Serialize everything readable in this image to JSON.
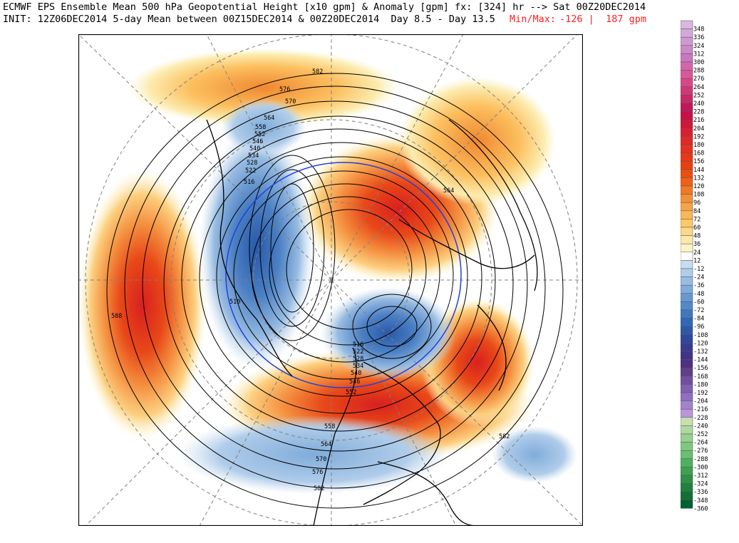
{
  "header": {
    "line1_left": "ECMWF EPS Ensemble Mean 500 hPa Geopotential Height [x10 gpm] & Anomaly [gpm] fx: [324] hr --> Sat 00Z20DEC2014",
    "line2_left": "INIT: 12Z06DEC2014 5-day Mean between 00Z15DEC2014 & 00Z20DEC2014  Day 8.5 - Day 13.5",
    "line2_overlap": "Min/Max:",
    "minmax_min": "-126",
    "minmax_sep": "|",
    "minmax_max": "187 gpm"
  },
  "map": {
    "projection": "north-polar-stereographic",
    "contour_labels": [
      "582",
      "576",
      "570",
      "564",
      "558",
      "552",
      "546",
      "540",
      "534",
      "528",
      "522",
      "516",
      "510",
      "588",
      "564",
      "516",
      "522",
      "528",
      "534",
      "540",
      "546",
      "552",
      "558",
      "564",
      "570",
      "576",
      "582",
      "582"
    ],
    "colors": {
      "positive_anomaly": "#f08030",
      "negative_anomaly": "#3070c0",
      "contour": "#000000",
      "graticule": "#808080"
    }
  },
  "colorbar": {
    "levels": [
      "348",
      "336",
      "324",
      "312",
      "300",
      "288",
      "276",
      "264",
      "252",
      "240",
      "228",
      "216",
      "204",
      "192",
      "180",
      "168",
      "156",
      "144",
      "132",
      "120",
      "108",
      "96",
      "84",
      "72",
      "60",
      "48",
      "36",
      "24",
      "12",
      "-12",
      "-24",
      "-36",
      "-48",
      "-60",
      "-72",
      "-84",
      "-96",
      "-108",
      "-120",
      "-132",
      "-144",
      "-156",
      "-168",
      "-180",
      "-192",
      "-204",
      "-216",
      "-228",
      "-240",
      "-252",
      "-264",
      "-276",
      "-288",
      "-300",
      "-312",
      "-324",
      "-336",
      "-348",
      "-360"
    ],
    "colors": [
      "#d8b8e0",
      "#d4a8d8",
      "#d098d0",
      "#cc88c8",
      "#c878c0",
      "#d068a8",
      "#d85898",
      "#d84888",
      "#d03878",
      "#c82868",
      "#c01858",
      "#c81048",
      "#d01838",
      "#d82030",
      "#e02828",
      "#e83020",
      "#e83818",
      "#e84010",
      "#e85010",
      "#f06018",
      "#f07828",
      "#f09038",
      "#f4a448",
      "#f8b858",
      "#fcc868",
      "#fcd888",
      "#fce8a8",
      "#fcf4c8",
      "#ffffff",
      "#c8dcf0",
      "#b0ccea",
      "#98bce2",
      "#80acda",
      "#6898d0",
      "#5488c8",
      "#4078c0",
      "#3068b4",
      "#3058a8",
      "#30489c",
      "#383c90",
      "#403488",
      "#503080",
      "#604088",
      "#7050a0",
      "#8060b0",
      "#9070c0",
      "#a084cc",
      "#b898d8",
      "#c8e0b0",
      "#b0d8a0",
      "#98d090",
      "#80c880",
      "#68c070",
      "#50b060",
      "#40a050",
      "#309048",
      "#208040",
      "#107038",
      "#006030"
    ]
  }
}
